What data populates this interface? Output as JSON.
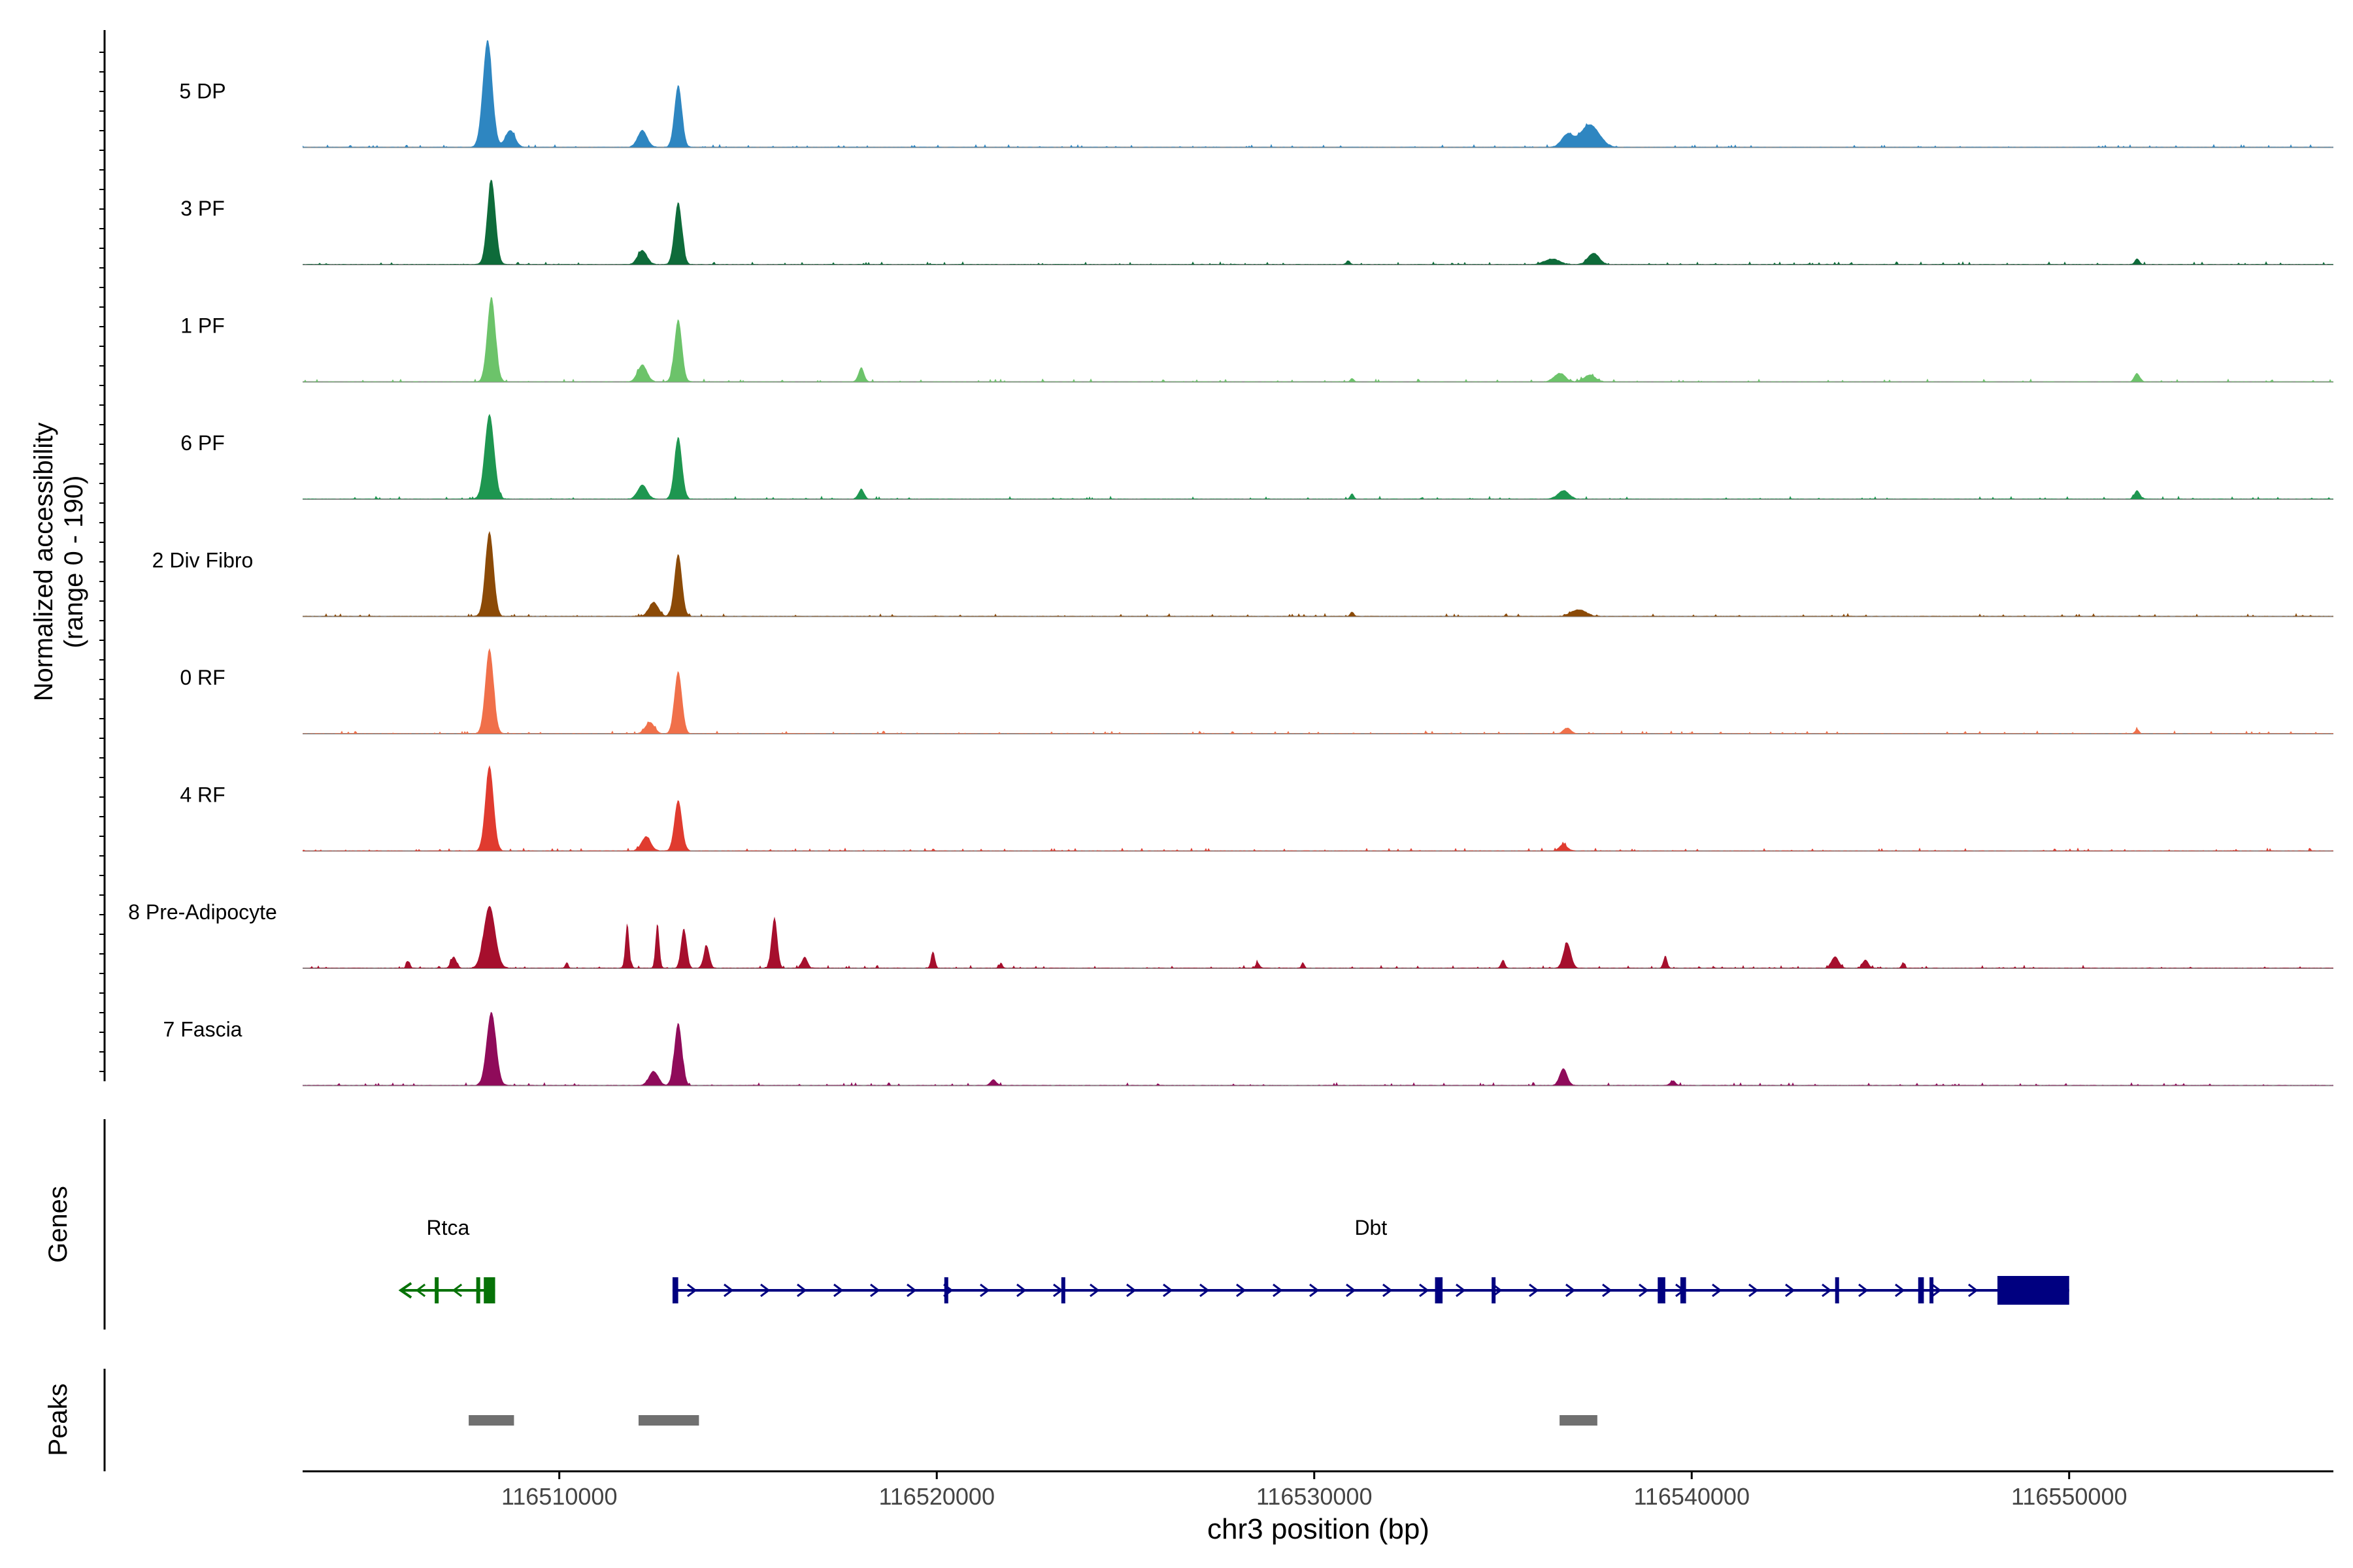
{
  "chart_data": {
    "type": "area",
    "title": "",
    "ylabel_line1": "Normalized accessibility",
    "ylabel_line2": "(range 0 - 190)",
    "ylim": [
      0,
      190
    ],
    "xlabel": "chr3 position (bp)",
    "xlim": [
      116503200,
      116557000
    ],
    "x_ticks": [
      116510000,
      116520000,
      116530000,
      116540000,
      116550000
    ],
    "x_tick_labels": [
      "116510000",
      "116520000",
      "116530000",
      "116540000",
      "116550000"
    ],
    "tracks": [
      {
        "name": "5 DP",
        "color": "#2E86C1",
        "peaks": [
          [
            116508100,
            190,
            250
          ],
          [
            116513150,
            110,
            200
          ],
          [
            116512200,
            30,
            250
          ],
          [
            116537300,
            40,
            500
          ],
          [
            116536700,
            22,
            300
          ],
          [
            116508700,
            30,
            250
          ]
        ]
      },
      {
        "name": "3 PF",
        "color": "#0E6B3A",
        "peaks": [
          [
            116508200,
            150,
            220
          ],
          [
            116513150,
            110,
            200
          ],
          [
            116512200,
            25,
            250
          ],
          [
            116537400,
            20,
            300
          ],
          [
            116536300,
            10,
            400
          ],
          [
            116551800,
            10,
            120
          ],
          [
            116530900,
            7,
            100
          ]
        ]
      },
      {
        "name": "1 PF",
        "color": "#6CC36A",
        "peaks": [
          [
            116508200,
            150,
            220
          ],
          [
            116513150,
            110,
            200
          ],
          [
            116512200,
            30,
            250
          ],
          [
            116518000,
            25,
            150
          ],
          [
            116536500,
            15,
            300
          ],
          [
            116537300,
            12,
            300
          ],
          [
            116551800,
            15,
            150
          ],
          [
            116531000,
            6,
            100
          ]
        ]
      },
      {
        "name": "6 PF",
        "color": "#1E9650",
        "peaks": [
          [
            116508150,
            150,
            250
          ],
          [
            116513150,
            110,
            200
          ],
          [
            116512200,
            25,
            250
          ],
          [
            116518000,
            18,
            150
          ],
          [
            116536600,
            15,
            300
          ],
          [
            116551800,
            15,
            150
          ],
          [
            116531000,
            10,
            100
          ]
        ]
      },
      {
        "name": "2 Div Fibro",
        "color": "#8B4A07",
        "peaks": [
          [
            116508150,
            150,
            220
          ],
          [
            116513150,
            110,
            200
          ],
          [
            116512500,
            25,
            250
          ],
          [
            116537000,
            12,
            400
          ],
          [
            116531000,
            8,
            100
          ]
        ]
      },
      {
        "name": "0 RF",
        "color": "#F0704A",
        "peaks": [
          [
            116508150,
            150,
            220
          ],
          [
            116513150,
            110,
            200
          ],
          [
            116512400,
            20,
            250
          ],
          [
            116536700,
            10,
            200
          ],
          [
            116551800,
            8,
            100
          ]
        ]
      },
      {
        "name": "4 RF",
        "color": "#E03B2F",
        "peaks": [
          [
            116508150,
            150,
            220
          ],
          [
            116513150,
            90,
            200
          ],
          [
            116512300,
            25,
            250
          ],
          [
            116536600,
            12,
            200
          ]
        ]
      },
      {
        "name": "8 Pre-Adipocyte",
        "color": "#A60F2D",
        "peaks": [
          [
            116508150,
            110,
            300
          ],
          [
            116507200,
            20,
            150
          ],
          [
            116506000,
            12,
            100
          ],
          [
            116511800,
            80,
            100
          ],
          [
            116512600,
            80,
            100
          ],
          [
            116513300,
            70,
            150
          ],
          [
            116513900,
            40,
            150
          ],
          [
            116515700,
            90,
            150
          ],
          [
            116516500,
            20,
            150
          ],
          [
            116519900,
            30,
            100
          ],
          [
            116521700,
            10,
            80
          ],
          [
            116536700,
            45,
            200
          ],
          [
            116535000,
            15,
            100
          ],
          [
            116539300,
            22,
            100
          ],
          [
            116543800,
            20,
            200
          ],
          [
            116544600,
            15,
            150
          ],
          [
            116545600,
            10,
            80
          ],
          [
            116528500,
            10,
            100
          ],
          [
            116529700,
            10,
            80
          ],
          [
            116510200,
            10,
            80
          ]
        ]
      },
      {
        "name": "7 Fascia",
        "color": "#8F0B5A",
        "peaks": [
          [
            116508200,
            130,
            250
          ],
          [
            116513150,
            110,
            200
          ],
          [
            116512500,
            25,
            250
          ],
          [
            116536600,
            30,
            200
          ],
          [
            116521500,
            10,
            150
          ],
          [
            116539500,
            8,
            150
          ]
        ]
      }
    ],
    "genes_label": "Genes",
    "genes": [
      {
        "name": "Rtca",
        "strand": "-",
        "color": "#067207",
        "start": 116505800,
        "end": 116508300,
        "exons": [
          [
            116506700,
            116506800
          ],
          [
            116507800,
            116507900
          ],
          [
            116508000,
            116508300
          ]
        ]
      },
      {
        "name": "Dbt",
        "strand": "+",
        "color": "#000080",
        "start": 116513000,
        "end": 116550000,
        "exons": [
          [
            116513000,
            116513150
          ],
          [
            116520200,
            116520300
          ],
          [
            116523300,
            116523350
          ],
          [
            116533200,
            116533400
          ],
          [
            116534700,
            116534800
          ],
          [
            116539100,
            116539300
          ],
          [
            116539700,
            116539850
          ],
          [
            116543800,
            116543850
          ],
          [
            116546000,
            116546150
          ],
          [
            116546300,
            116546400
          ],
          [
            116548100,
            116550000
          ]
        ]
      }
    ],
    "peaks_label": "Peaks",
    "peak_regions": [
      [
        116507600,
        116508800
      ],
      [
        116512100,
        116513700
      ],
      [
        116536500,
        116537500
      ]
    ],
    "peak_color": "#707070"
  }
}
